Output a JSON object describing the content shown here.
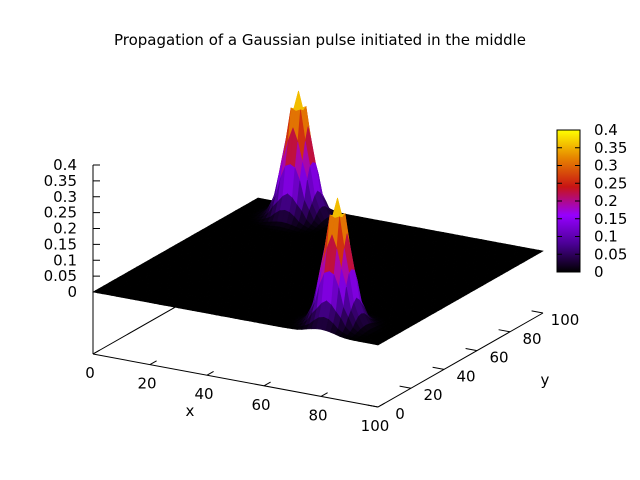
{
  "chart_data": {
    "type": "surface",
    "title": "Propagation of a Gaussian pulse initiated in the middle",
    "xlabel": "x",
    "ylabel": "y",
    "zlabel": "",
    "xlim": [
      0,
      100
    ],
    "ylim": [
      0,
      100
    ],
    "zlim": [
      0,
      0.4
    ],
    "x_ticks": [
      "0",
      "20",
      "40",
      "60",
      "80",
      "100"
    ],
    "y_ticks": [
      "0",
      "20",
      "40",
      "60",
      "80",
      "100"
    ],
    "z_ticks": [
      "0",
      "0.05",
      "0.1",
      "0.15",
      "0.2",
      "0.25",
      "0.3",
      "0.35",
      "0.4"
    ],
    "colorbar_ticks": [
      "0",
      "0.05",
      "0.1",
      "0.15",
      "0.2",
      "0.25",
      "0.3",
      "0.35",
      "0.4"
    ],
    "colormap": [
      "#000000",
      "#4b0096",
      "#9600ff",
      "#c81414",
      "#e68200",
      "#ffff00"
    ],
    "pulses": [
      {
        "x": 20,
        "y": 90,
        "peak": 0.4,
        "width": 4
      },
      {
        "x": 80,
        "y": 10,
        "peak": 0.4,
        "width": 4
      }
    ],
    "grid": false
  }
}
